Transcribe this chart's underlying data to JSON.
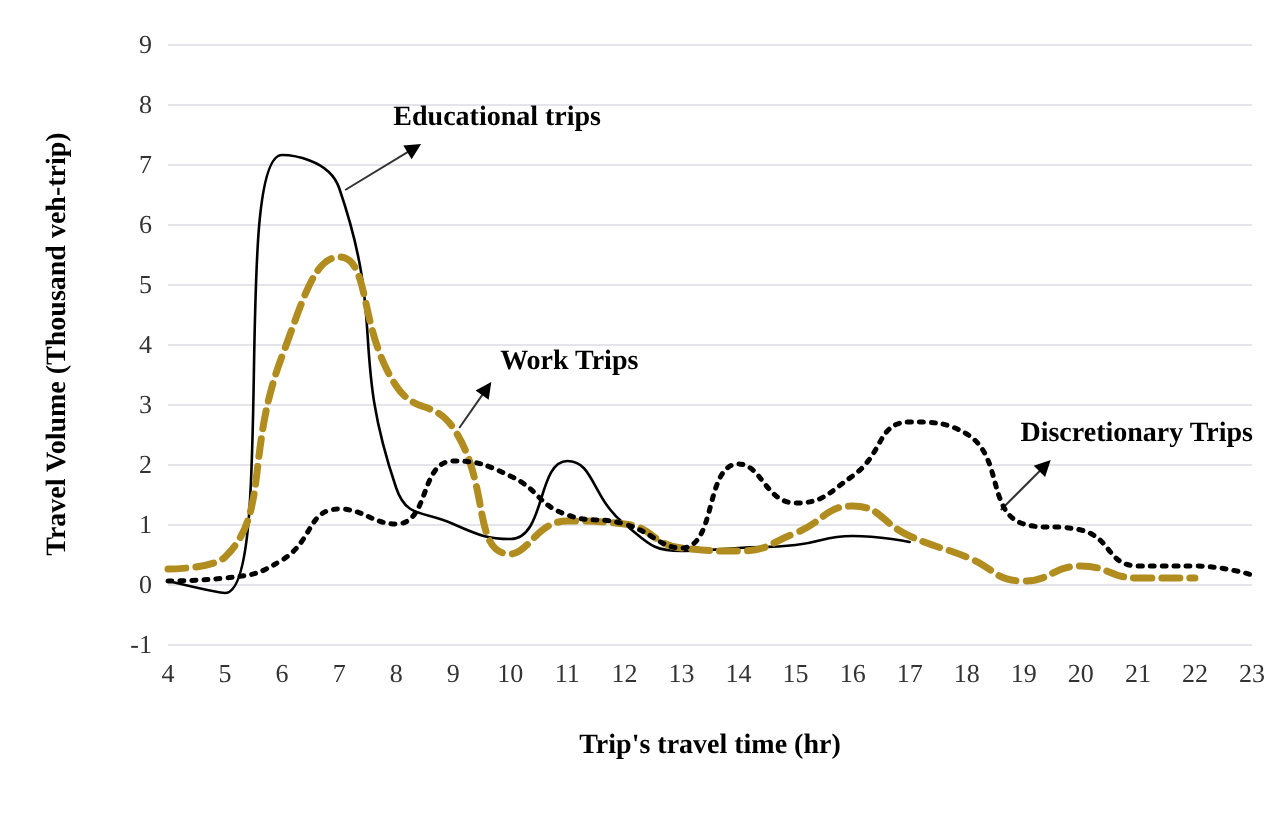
{
  "chart_data": {
    "type": "line",
    "xlabel": "Trip's travel time (hr)",
    "ylabel": "Travel Volume (Thousand veh-trip)",
    "categories": [
      "4",
      "5",
      "6",
      "7",
      "8",
      "9",
      "10",
      "11",
      "12",
      "13",
      "14",
      "15",
      "16",
      "17",
      "18",
      "19",
      "20",
      "21",
      "22",
      "23"
    ],
    "series": [
      {
        "color": "#000000",
        "line_style": "solid",
        "values": [
          0.05,
          -0.15,
          7.15,
          6.6,
          1.6,
          1.0,
          0.75,
          2.05,
          1.0,
          0.55,
          0.6,
          0.65,
          0.8,
          0.7,
          null,
          null,
          null,
          null,
          null,
          null
        ]
      },
      {
        "color": "#b08d1e",
        "line_style": "dashed",
        "values": [
          0.25,
          0.45,
          3.8,
          5.45,
          3.3,
          2.6,
          0.5,
          1.05,
          1.0,
          0.6,
          0.55,
          0.85,
          1.3,
          0.8,
          0.45,
          0.05,
          0.3,
          0.1,
          0.1,
          null
        ]
      },
      {
        "color": "#000000",
        "line_style": "dotted",
        "values": [
          0.05,
          0.1,
          0.4,
          1.25,
          1.0,
          2.05,
          1.8,
          1.15,
          1.0,
          0.6,
          2.0,
          1.35,
          1.8,
          2.7,
          2.5,
          1.0,
          0.9,
          0.3,
          0.3,
          0.15
        ]
      }
    ],
    "annotations": [
      {
        "text": "Educational trips",
        "x": "7",
        "y": 6.6
      },
      {
        "text": "Work Trips",
        "x": "9",
        "y": 2.6
      },
      {
        "text": "Discretionary Trips",
        "x": "18",
        "y": 2.5
      }
    ],
    "ylim": [
      -1,
      9
    ],
    "yticks": [
      -1,
      0,
      1,
      2,
      3,
      4,
      5,
      6,
      7,
      8,
      9
    ],
    "grid": "y",
    "marker": "none"
  }
}
